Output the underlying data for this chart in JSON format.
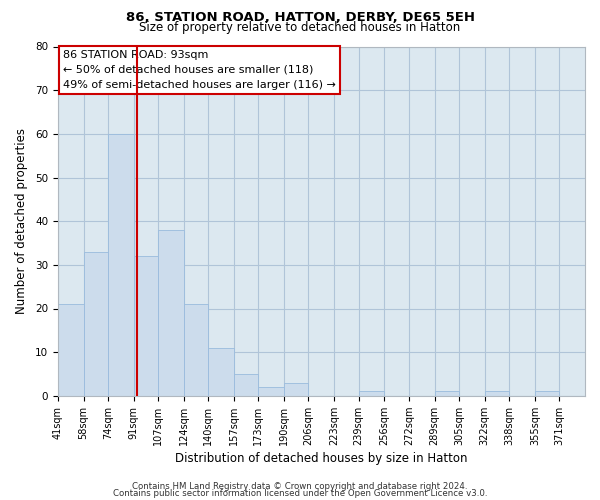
{
  "title": "86, STATION ROAD, HATTON, DERBY, DE65 5EH",
  "subtitle": "Size of property relative to detached houses in Hatton",
  "xlabel": "Distribution of detached houses by size in Hatton",
  "ylabel": "Number of detached properties",
  "bar_edges": [
    41,
    58,
    74,
    91,
    107,
    124,
    140,
    157,
    173,
    190,
    206,
    223,
    239,
    256,
    272,
    289,
    305,
    322,
    338,
    355,
    371
  ],
  "bar_heights": [
    21,
    33,
    60,
    32,
    38,
    21,
    11,
    5,
    2,
    3,
    0,
    0,
    1,
    0,
    0,
    1,
    0,
    1,
    0,
    1
  ],
  "bar_color": "#ccdcec",
  "bar_edgecolor": "#99bbdd",
  "vline_x": 93,
  "vline_color": "#cc0000",
  "ylim": [
    0,
    80
  ],
  "xlim": [
    41,
    388
  ],
  "annotation_title": "86 STATION ROAD: 93sqm",
  "annotation_line1": "← 50% of detached houses are smaller (118)",
  "annotation_line2": "49% of semi-detached houses are larger (116) →",
  "annotation_box_facecolor": "#ffffff",
  "annotation_box_edgecolor": "#cc0000",
  "footer1": "Contains HM Land Registry data © Crown copyright and database right 2024.",
  "footer2": "Contains public sector information licensed under the Open Government Licence v3.0.",
  "tick_labels": [
    "41sqm",
    "58sqm",
    "74sqm",
    "91sqm",
    "107sqm",
    "124sqm",
    "140sqm",
    "157sqm",
    "173sqm",
    "190sqm",
    "206sqm",
    "223sqm",
    "239sqm",
    "256sqm",
    "272sqm",
    "289sqm",
    "305sqm",
    "322sqm",
    "338sqm",
    "355sqm",
    "371sqm"
  ],
  "plot_bg_color": "#dce8f0",
  "fig_bg_color": "#ffffff",
  "grid_color": "#b0c4d8",
  "yticks": [
    0,
    10,
    20,
    30,
    40,
    50,
    60,
    70,
    80
  ],
  "title_fontsize": 9.5,
  "subtitle_fontsize": 8.5,
  "xlabel_fontsize": 8.5,
  "ylabel_fontsize": 8.5,
  "tick_fontsize": 7,
  "annotation_fontsize": 8,
  "footer_fontsize": 6.2
}
